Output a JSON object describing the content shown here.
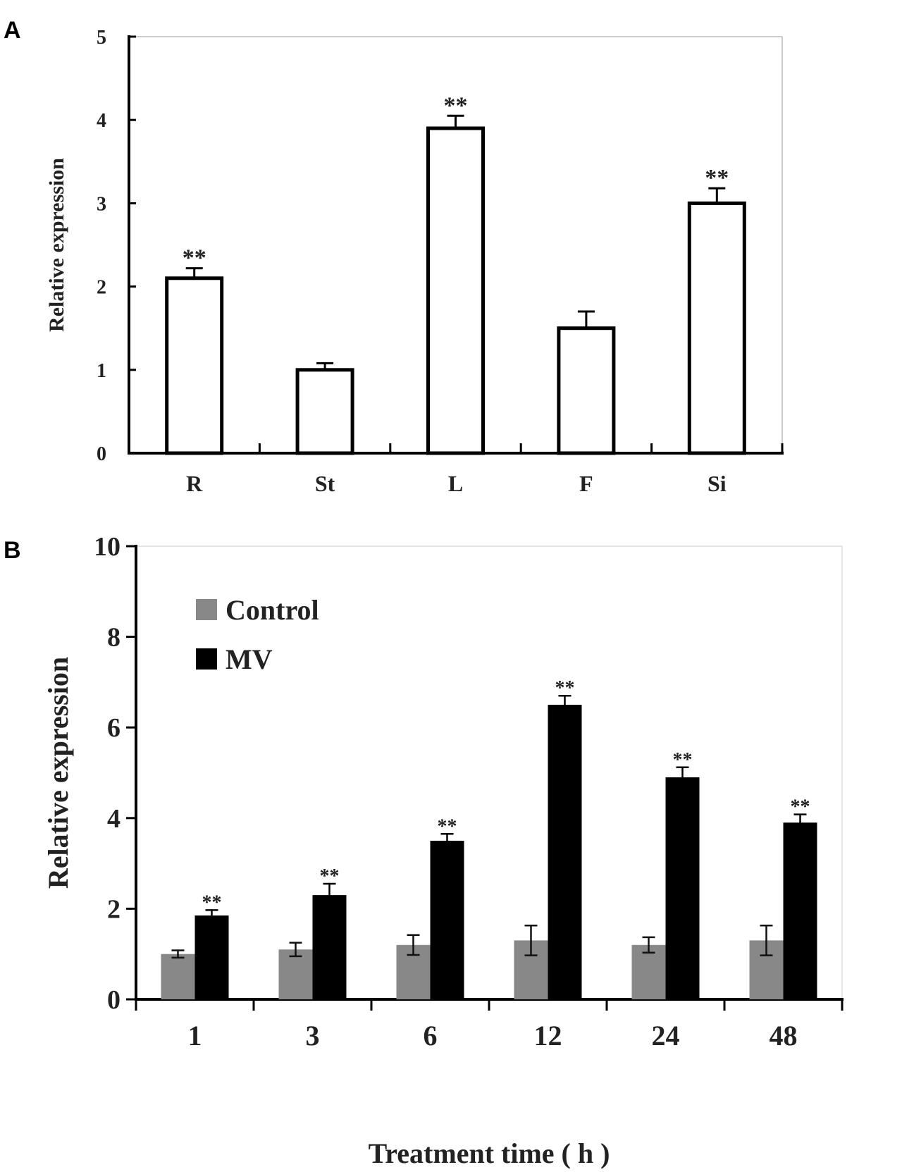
{
  "chart_data": [
    {
      "panel": "A",
      "type": "bar",
      "ylabel": "Relative expression",
      "xlabel": "",
      "ylim": [
        0,
        5
      ],
      "yticks": [
        "0",
        "1",
        "2",
        "3",
        "4",
        "5"
      ],
      "categories": [
        "R",
        "St",
        "L",
        "F",
        "Si"
      ],
      "series": [
        {
          "name": "",
          "values": [
            2.1,
            1.0,
            3.9,
            1.5,
            3.0
          ],
          "errors": [
            0.12,
            0.08,
            0.15,
            0.2,
            0.18
          ],
          "significance": [
            "**",
            "",
            "**",
            "",
            "**"
          ]
        }
      ]
    },
    {
      "panel": "B",
      "type": "bar",
      "ylabel": "Relative expression",
      "xlabel": "Treatment time ( h )",
      "ylim": [
        0,
        10
      ],
      "yticks": [
        "0",
        "2",
        "4",
        "6",
        "8",
        "10"
      ],
      "categories": [
        "1",
        "3",
        "6",
        "12",
        "24",
        "48"
      ],
      "legend": [
        "Control",
        "MV"
      ],
      "series": [
        {
          "name": "Control",
          "color": "#888888",
          "values": [
            1.0,
            1.1,
            1.2,
            1.3,
            1.2,
            1.3
          ],
          "errors": [
            0.08,
            0.15,
            0.22,
            0.33,
            0.17,
            0.33
          ],
          "significance": [
            "",
            "",
            "",
            "",
            "",
            ""
          ]
        },
        {
          "name": "MV",
          "color": "#000000",
          "values": [
            1.85,
            2.3,
            3.5,
            6.5,
            4.9,
            3.9
          ],
          "errors": [
            0.12,
            0.25,
            0.15,
            0.2,
            0.22,
            0.18
          ],
          "significance": [
            "**",
            "**",
            "**",
            "**",
            "**",
            "**"
          ]
        }
      ]
    }
  ]
}
